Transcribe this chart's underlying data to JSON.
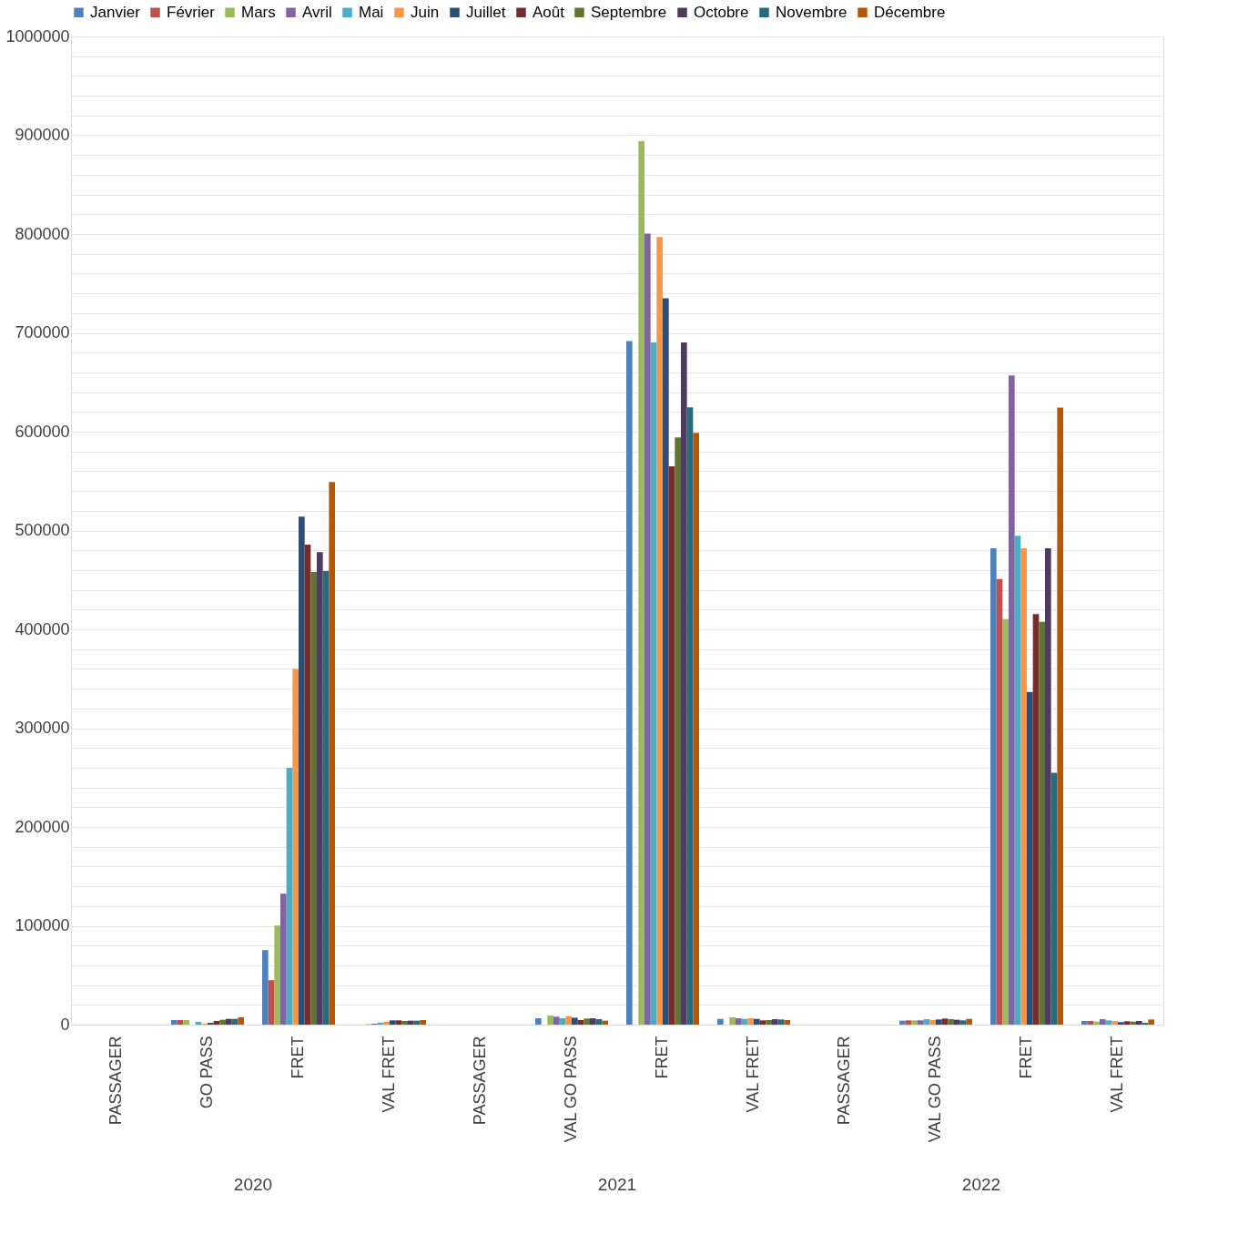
{
  "chart_data": {
    "type": "bar",
    "categories": [
      "PASSAGER",
      "GO PASS",
      "FRET",
      "VAL FRET",
      "PASSAGER",
      "VAL GO PASS",
      "FRET",
      "VAL FRET",
      "PASSAGER",
      "VAL GO PASS",
      "FRET",
      "VAL FRET"
    ],
    "annotations": [
      "2020",
      "2021",
      "2022"
    ],
    "series": [
      {
        "name": "Janvier",
        "color": "#4f81bd",
        "values": [
          0,
          4600,
          75400,
          0,
          0,
          6400,
          691800,
          5800,
          0,
          4000,
          482000,
          3700
        ]
      },
      {
        "name": "Février",
        "color": "#c0504d",
        "values": [
          0,
          4600,
          45000,
          0,
          0,
          0,
          0,
          0,
          0,
          4300,
          451000,
          3700
        ]
      },
      {
        "name": "Mars",
        "color": "#9bbb59",
        "values": [
          0,
          4600,
          100300,
          500,
          0,
          9200,
          894000,
          7400,
          0,
          4300,
          410300,
          3000
        ]
      },
      {
        "name": "Avril",
        "color": "#8064a2",
        "values": [
          0,
          0,
          132500,
          1000,
          0,
          8000,
          800400,
          6400,
          0,
          4300,
          656800,
          5500
        ]
      },
      {
        "name": "Mai",
        "color": "#4bacc6",
        "values": [
          0,
          2800,
          260000,
          2000,
          0,
          6400,
          690300,
          5800,
          0,
          5500,
          494600,
          4300
        ]
      },
      {
        "name": "Juin",
        "color": "#f79646",
        "values": [
          0,
          1000,
          360000,
          3000,
          0,
          8600,
          797000,
          6400,
          0,
          4600,
          482000,
          3700
        ]
      },
      {
        "name": "Juillet",
        "color": "#2c4d75",
        "values": [
          0,
          1800,
          514000,
          4300,
          0,
          7000,
          735000,
          5800,
          0,
          5200,
          336700,
          2500
        ]
      },
      {
        "name": "Août",
        "color": "#772c2a",
        "values": [
          0,
          3700,
          485700,
          4300,
          0,
          4600,
          564900,
          4300,
          0,
          6100,
          415500,
          3400
        ]
      },
      {
        "name": "Septembre",
        "color": "#5f7530",
        "values": [
          0,
          4900,
          458000,
          3700,
          0,
          6100,
          594300,
          4600,
          0,
          5500,
          407500,
          3000
        ]
      },
      {
        "name": "Octobre",
        "color": "#4d3b62",
        "values": [
          0,
          5800,
          478000,
          4000,
          0,
          6400,
          690300,
          5500,
          0,
          4900,
          482000,
          3700
        ]
      },
      {
        "name": "Novembre",
        "color": "#276a7c",
        "values": [
          0,
          5800,
          459000,
          4000,
          0,
          5500,
          624700,
          5200,
          0,
          4300,
          254800,
          1800
        ]
      },
      {
        "name": "Décembre",
        "color": "#b65708",
        "values": [
          0,
          7400,
          549000,
          4600,
          0,
          4000,
          598900,
          4600,
          0,
          5800,
          624400,
          5200
        ]
      }
    ],
    "ylim": [
      0,
      1000000
    ],
    "yticks": [
      0,
      {
        "value": 20000,
        "label": null
      },
      {
        "value": 40000,
        "label": null
      },
      {
        "value": 60000,
        "label": null
      },
      {
        "value": 80000,
        "label": null
      },
      100000,
      {
        "value": 120000,
        "label": null
      },
      {
        "value": 140000,
        "label": null
      },
      {
        "value": 160000,
        "label": null
      },
      {
        "value": 180000,
        "label": null
      },
      200000,
      {
        "value": 220000,
        "label": null
      },
      {
        "value": 240000,
        "label": null
      },
      {
        "value": 260000,
        "label": null
      },
      {
        "value": 280000,
        "label": null
      },
      300000,
      {
        "value": 320000,
        "label": null
      },
      {
        "value": 340000,
        "label": null
      },
      {
        "value": 360000,
        "label": null
      },
      {
        "value": 380000,
        "label": null
      },
      400000,
      {
        "value": 420000,
        "label": null
      },
      {
        "value": 440000,
        "label": null
      },
      {
        "value": 460000,
        "label": null
      },
      {
        "value": 480000,
        "label": null
      },
      500000,
      {
        "value": 520000,
        "label": null
      },
      {
        "value": 540000,
        "label": null
      },
      {
        "value": 560000,
        "label": null
      },
      {
        "value": 580000,
        "label": null
      },
      600000,
      {
        "value": 620000,
        "label": null
      },
      {
        "value": 640000,
        "label": null
      },
      {
        "value": 660000,
        "label": null
      },
      {
        "value": 680000,
        "label": null
      },
      700000,
      {
        "value": 720000,
        "label": null
      },
      {
        "value": 740000,
        "label": null
      },
      {
        "value": 760000,
        "label": null
      },
      {
        "value": 780000,
        "label": null
      },
      800000,
      {
        "value": 820000,
        "label": null
      },
      {
        "value": 840000,
        "label": null
      },
      {
        "value": 860000,
        "label": null
      },
      {
        "value": 880000,
        "label": null
      },
      900000,
      {
        "value": 920000,
        "label": null
      },
      {
        "value": 940000,
        "label": null
      },
      {
        "value": 960000,
        "label": null
      },
      {
        "value": 980000,
        "label": null
      },
      1000000
    ],
    "grid": "y",
    "legend": "top"
  }
}
